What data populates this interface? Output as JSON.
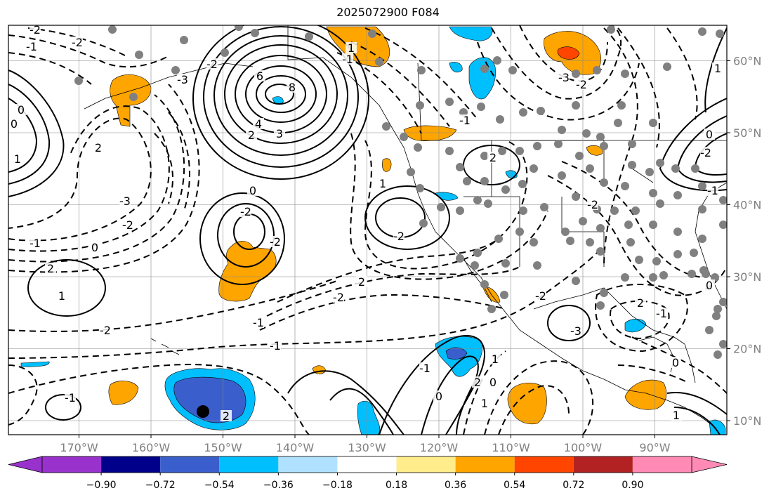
{
  "title": "2025072900 F084",
  "map": {
    "projection": "cylindrical",
    "lon_range": [
      -180,
      -80
    ],
    "lat_range": [
      8,
      66
    ],
    "lon_ticks": [
      {
        "lon": -170,
        "label": "170°W"
      },
      {
        "lon": -160,
        "label": "160°W"
      },
      {
        "lon": -150,
        "label": "150°W"
      },
      {
        "lon": -140,
        "label": "140°W"
      },
      {
        "lon": -130,
        "label": "130°W"
      },
      {
        "lon": -120,
        "label": "120°W"
      },
      {
        "lon": -110,
        "label": "110°W"
      },
      {
        "lon": -100,
        "label": "100°W"
      },
      {
        "lon": -90,
        "label": "90°W"
      }
    ],
    "lat_ticks": [
      {
        "lat": 60,
        "label": "60°N"
      },
      {
        "lat": 50,
        "label": "50°N"
      },
      {
        "lat": 40,
        "label": "40°N"
      },
      {
        "lat": 30,
        "label": "30°N"
      },
      {
        "lat": 20,
        "label": "20°N"
      },
      {
        "lat": 10,
        "label": "10°N"
      }
    ],
    "contour_labels": [
      "-2",
      "-1",
      "-2",
      "0",
      "0",
      "1",
      "6",
      "8",
      "4",
      "3",
      "2",
      "-2",
      "-3",
      "2",
      "-3",
      "-2",
      "-1",
      "0",
      "2",
      "1",
      "-2",
      "-1",
      "-1",
      "-2",
      "2",
      "1",
      "-2",
      "0",
      "-2",
      "-2",
      "-1",
      "2",
      "-1",
      "0",
      "1",
      "2",
      "0",
      "1",
      "-2",
      "-3",
      "-1",
      "1",
      "-2",
      "-3",
      "-1",
      "2",
      "-2",
      "0",
      "1",
      "-2",
      "-1",
      "0",
      "-1",
      "2",
      "1",
      "0"
    ],
    "marker": {
      "label": "black-dot"
    }
  },
  "colorbar": {
    "colors": [
      "#9932cc",
      "#00008b",
      "#3a5fcd",
      "#00bfff",
      "#b0e2ff",
      "#ffffff",
      "#ffec8b",
      "#ffa500",
      "#ff4500",
      "#b22222",
      "#ff8bb5"
    ],
    "tick_labels": [
      "−0.90",
      "−0.72",
      "−0.54",
      "−0.36",
      "−0.18",
      "0.18",
      "0.36",
      "0.54",
      "0.72",
      "0.90"
    ]
  }
}
